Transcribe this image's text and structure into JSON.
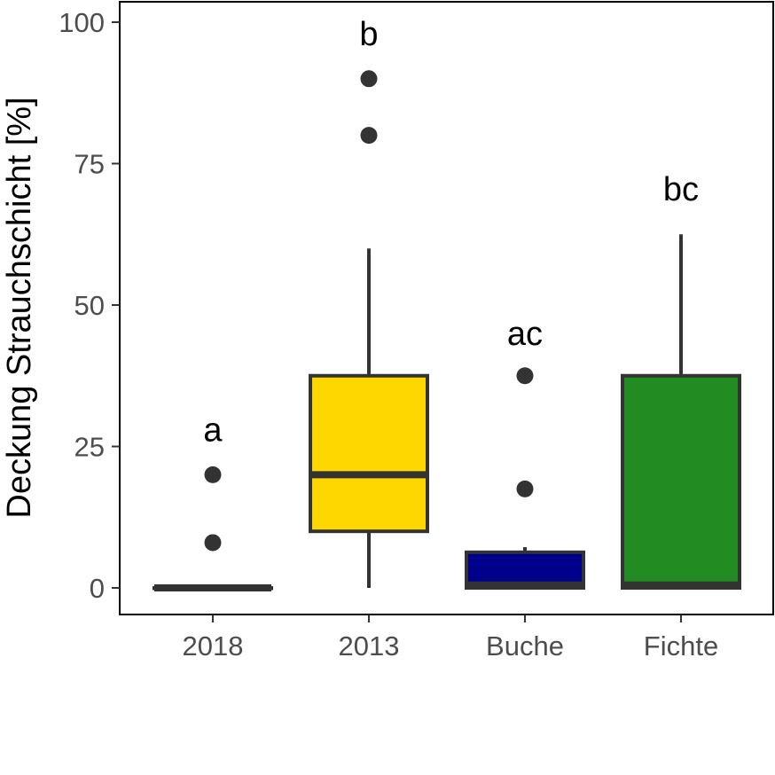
{
  "chart_data": {
    "type": "boxplot",
    "title": "",
    "xlabel": "",
    "ylabel": "Deckung Strauchschicht [%]",
    "ylim": [
      -4.7,
      104.7
    ],
    "yticks": [
      0,
      25,
      50,
      75,
      100
    ],
    "ytick_labels": [
      "0",
      "25",
      "50",
      "75",
      "100"
    ],
    "grid": false,
    "legend": "none",
    "categories": [
      "2018",
      "2013",
      "Buche",
      "Fichte"
    ],
    "groups": [
      {
        "category": "2018",
        "min": 0,
        "q1": 0,
        "median": 0,
        "q3": 0,
        "max": 0,
        "outliers": [
          8,
          20
        ],
        "letter": "a",
        "letter_y": 28,
        "fill": "#2b2b2b"
      },
      {
        "category": "2013",
        "min": 0,
        "q1": 10,
        "median": 20,
        "q3": 37.5,
        "max": 60,
        "outliers": [
          80,
          90
        ],
        "letter": "b",
        "letter_y": 98,
        "fill": "#FFD700"
      },
      {
        "category": "Buche",
        "min": 0,
        "q1": 0,
        "median": 0.5,
        "q3": 6.3,
        "max": 7.2,
        "outliers": [
          17.5,
          37.5
        ],
        "letter": "ac",
        "letter_y": 45,
        "fill": "#00008B"
      },
      {
        "category": "Fichte",
        "min": 0,
        "q1": 0,
        "median": 0.5,
        "q3": 37.5,
        "max": 62.5,
        "outliers": [],
        "letter": "bc",
        "letter_y": 70.5,
        "fill": "#228B22"
      }
    ],
    "colors": {
      "line": "#333333",
      "outlier": "#333333",
      "panel_border": "#000000"
    }
  }
}
